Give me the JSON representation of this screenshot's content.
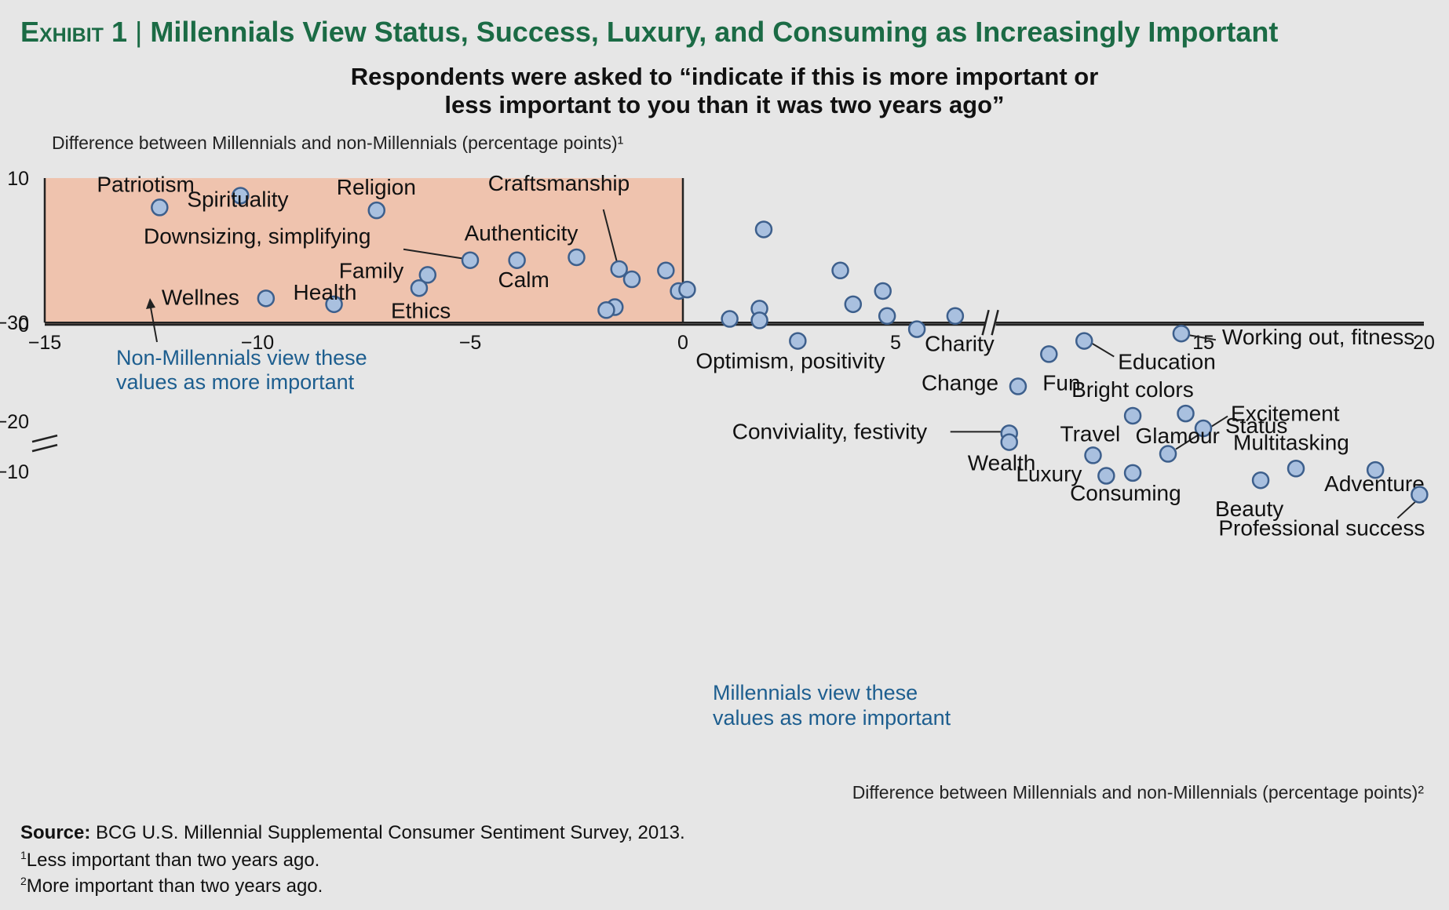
{
  "header": {
    "exhibit": "Exhibit 1",
    "title": "Millennials View Status, Success, Luxury, and Consuming as Increasingly Important",
    "subtitle_line1": "Respondents were asked to “indicate if this is more important or",
    "subtitle_line2": "less important to you than it was two years ago”"
  },
  "chart_data": {
    "type": "scatter",
    "ylabel": "Difference between Millennials and non-Millennials (percentage points)¹",
    "xlabel": "Difference between Millennials and non-Millennials (percentage points)²",
    "xlim": [
      -15,
      20
    ],
    "ylim": [
      -30,
      10
    ],
    "x_axis_break_between": [
      7,
      9
    ],
    "y_axis_break_between": [
      -10,
      -20
    ],
    "x_ticks": [
      -15,
      -10,
      -5,
      0,
      5,
      15,
      20
    ],
    "x_tick_labels": [
      "−15",
      "−10",
      "−5",
      "0",
      "5",
      "15",
      "20"
    ],
    "y_ticks": [
      10,
      0,
      -10,
      -20,
      -30
    ],
    "y_tick_labels": [
      "10",
      "0",
      "−10",
      "−20",
      "−30"
    ],
    "colors": {
      "non_millennial_quadrant": "#efc3ae",
      "millennial_quadrant": "#c0dcd3",
      "point_fill": "#a9c0df",
      "point_stroke": "#3d5f8c",
      "title_green": "#1b6b45",
      "annotation_blue": "#1d5e8f"
    },
    "annotations": [
      {
        "text_line1": "Non-Millennials view these",
        "text_line2": "values as more important",
        "quadrant": "top-left"
      },
      {
        "text_line1": "Millennials view these",
        "text_line2": "values as more important",
        "quadrant": "bottom-right"
      }
    ],
    "points": [
      {
        "label": "Patriotism",
        "x": -12.3,
        "y": 8.0
      },
      {
        "label": "Spirituality",
        "x": -10.4,
        "y": 8.8
      },
      {
        "label": "Religion",
        "x": -7.2,
        "y": 7.8
      },
      {
        "label": "Downsizing, simplifying",
        "x": -5.0,
        "y": 4.4
      },
      {
        "label": "Authenticity",
        "x": -3.9,
        "y": 4.4
      },
      {
        "label": "Craftsmanship",
        "x": -1.5,
        "y": 3.8
      },
      {
        "label": "Family",
        "x": -6.0,
        "y": 3.4
      },
      {
        "label": "Ethics",
        "x": -6.2,
        "y": 2.5
      },
      {
        "label": "Health",
        "x": -8.2,
        "y": 1.4
      },
      {
        "label": "Wellnes",
        "x": -9.8,
        "y": 1.8
      },
      {
        "label": "Calm",
        "x": -2.5,
        "y": 4.6
      },
      {
        "label": "",
        "x": -1.2,
        "y": 3.1
      },
      {
        "label": "",
        "x": -0.4,
        "y": 3.7
      },
      {
        "label": "",
        "x": -0.1,
        "y": 2.3
      },
      {
        "label": "",
        "x": 0.1,
        "y": 2.4
      },
      {
        "label": "",
        "x": -1.6,
        "y": 1.2
      },
      {
        "label": "",
        "x": -1.8,
        "y": 1.0
      },
      {
        "label": "",
        "x": 1.9,
        "y": 6.5
      },
      {
        "label": "",
        "x": 3.7,
        "y": 3.7
      },
      {
        "label": "",
        "x": 4.7,
        "y": 2.3
      },
      {
        "label": "",
        "x": 4.0,
        "y": 1.4
      },
      {
        "label": "",
        "x": 4.8,
        "y": 0.6
      },
      {
        "label": "",
        "x": 6.4,
        "y": 0.6
      },
      {
        "label": "",
        "x": 1.8,
        "y": 1.1
      },
      {
        "label": "",
        "x": 1.8,
        "y": 0.3
      },
      {
        "label": "",
        "x": 1.1,
        "y": 0.4
      },
      {
        "label": "Optimism, positivity",
        "x": 2.7,
        "y": -1.1
      },
      {
        "label": "Charity",
        "x": 5.5,
        "y": -0.3
      },
      {
        "label": "Working out, fitness",
        "x": 14.5,
        "y": -0.6
      },
      {
        "label": "Education",
        "x": 12.3,
        "y": -1.1
      },
      {
        "label": "Fun",
        "x": 11.5,
        "y": -2.0
      },
      {
        "label": "Change",
        "x": 10.8,
        "y": -4.2
      },
      {
        "label": "Bright colors",
        "x": 13.4,
        "y": -6.2
      },
      {
        "label": "Conviviality, festivity",
        "x": 10.6,
        "y": -7.4
      },
      {
        "label": "Wealth",
        "x": 10.6,
        "y": -8.0
      },
      {
        "label": "Travel",
        "x": 12.5,
        "y": -8.9
      },
      {
        "label": "Excitement",
        "x": 14.2,
        "y": -8.8
      },
      {
        "label": "Consuming",
        "x": 13.4,
        "y": -10.1
      },
      {
        "label": "Multitasking",
        "x": 17.1,
        "y": -9.8
      },
      {
        "label": "Beauty",
        "x": 16.3,
        "y": -10.6
      },
      {
        "label": "Adventure",
        "x": 18.9,
        "y": -9.9
      },
      {
        "label": "Professional success",
        "x": 19.9,
        "y": -12.6
      },
      {
        "label": "Luxury",
        "x": 12.8,
        "y": -14.5
      },
      {
        "label": "Status",
        "x": 15.0,
        "y": -19.3
      },
      {
        "label": "Glamour",
        "x": 14.6,
        "y": -20.8
      }
    ]
  },
  "footer": {
    "source_label": "Source:",
    "source_text": "BCG U.S. Millennial Supplemental Consumer Sentiment Survey, 2013.",
    "note1_mark": "1",
    "note1_text": "Less important than two years ago.",
    "note2_mark": "2",
    "note2_text": "More important than two years ago."
  }
}
